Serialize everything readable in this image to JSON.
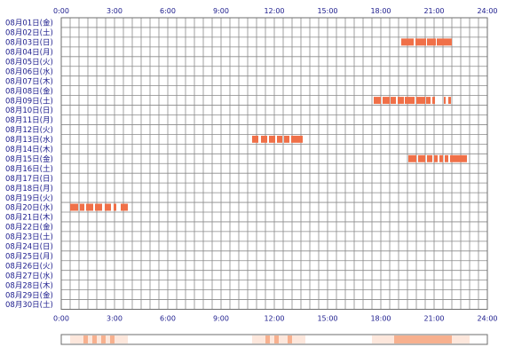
{
  "colors": {
    "activity": "#f07048",
    "grid": "#8a8a8a",
    "frame": "#6e6e6e",
    "label": "#1a1a8c",
    "summary_high": "#f7b08e",
    "summary_low": "#fde7dc"
  },
  "chart_data": {
    "type": "heatmap",
    "x_labels": [
      "0:00",
      "3:00",
      "6:00",
      "9:00",
      "12:00",
      "15:00",
      "18:00",
      "21:00",
      "24:00"
    ],
    "x_range_hours": [
      0,
      24
    ],
    "grid": true,
    "rows": [
      {
        "label": "08月01日(金)",
        "segments": []
      },
      {
        "label": "08月02日(土)",
        "segments": []
      },
      {
        "label": "08月03日(日)",
        "segments": [
          [
            19.15,
            19.85
          ],
          [
            19.95,
            20.55
          ],
          [
            20.6,
            21.1
          ],
          [
            21.15,
            22.0
          ]
        ]
      },
      {
        "label": "08月04日(月)",
        "segments": []
      },
      {
        "label": "08月05日(火)",
        "segments": []
      },
      {
        "label": "08月06日(水)",
        "segments": []
      },
      {
        "label": "08月07日(木)",
        "segments": []
      },
      {
        "label": "08月08日(金)",
        "segments": []
      },
      {
        "label": "08月09日(土)",
        "segments": [
          [
            17.6,
            18.0
          ],
          [
            18.1,
            18.5
          ],
          [
            18.55,
            18.85
          ],
          [
            18.95,
            19.3
          ],
          [
            19.35,
            19.9
          ],
          [
            20.0,
            20.5
          ],
          [
            20.55,
            20.8
          ],
          [
            20.9,
            21.05
          ],
          [
            21.55,
            21.65
          ],
          [
            21.8,
            21.95
          ]
        ]
      },
      {
        "label": "08月10日(日)",
        "segments": []
      },
      {
        "label": "08月11日(月)",
        "segments": []
      },
      {
        "label": "08月12日(火)",
        "segments": []
      },
      {
        "label": "08月13日(水)",
        "segments": [
          [
            10.75,
            11.1
          ],
          [
            11.25,
            11.6
          ],
          [
            11.7,
            12.05
          ],
          [
            12.15,
            12.45
          ],
          [
            12.55,
            12.85
          ],
          [
            12.95,
            13.6
          ]
        ]
      },
      {
        "label": "08月14日(木)",
        "segments": []
      },
      {
        "label": "08月15日(金)",
        "segments": [
          [
            19.55,
            20.0
          ],
          [
            20.1,
            20.5
          ],
          [
            20.6,
            20.9
          ],
          [
            21.0,
            21.2
          ],
          [
            21.3,
            21.5
          ],
          [
            21.6,
            21.8
          ],
          [
            21.9,
            22.85
          ]
        ]
      },
      {
        "label": "08月16日(土)",
        "segments": []
      },
      {
        "label": "08月17日(日)",
        "segments": []
      },
      {
        "label": "08月18日(月)",
        "segments": []
      },
      {
        "label": "08月19日(火)",
        "segments": []
      },
      {
        "label": "08月20日(水)",
        "segments": [
          [
            0.5,
            0.95
          ],
          [
            1.05,
            1.3
          ],
          [
            1.4,
            1.8
          ],
          [
            1.9,
            2.3
          ],
          [
            2.45,
            2.8
          ],
          [
            2.95,
            3.1
          ],
          [
            3.35,
            3.75
          ]
        ]
      },
      {
        "label": "08月21日(木)",
        "segments": []
      },
      {
        "label": "08月22日(金)",
        "segments": []
      },
      {
        "label": "08月23日(土)",
        "segments": []
      },
      {
        "label": "08月24日(日)",
        "segments": []
      },
      {
        "label": "08月25日(月)",
        "segments": []
      },
      {
        "label": "08月26日(火)",
        "segments": []
      },
      {
        "label": "08月27日(水)",
        "segments": []
      },
      {
        "label": "08月28日(木)",
        "segments": []
      },
      {
        "label": "08月29日(金)",
        "segments": []
      },
      {
        "label": "08月30日(土)",
        "segments": []
      }
    ]
  }
}
